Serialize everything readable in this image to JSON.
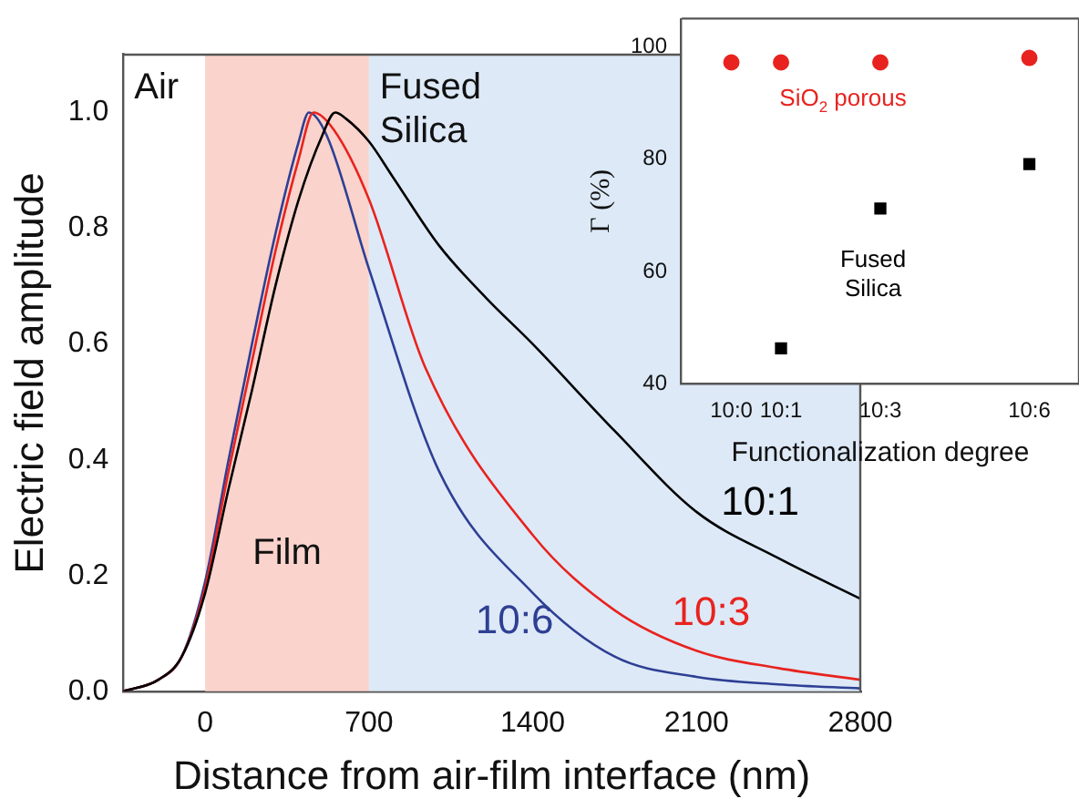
{
  "chart_data": [
    {
      "type": "line",
      "xlabel": "Distance from air-film interface (nm)",
      "ylabel": "Electric field amplitude",
      "xlim": [
        -350,
        2800
      ],
      "xticks": [
        0,
        700,
        1400,
        2100,
        2800
      ],
      "ylim": [
        0,
        1.1
      ],
      "yticks": [
        {
          "value": 0,
          "label": "0.0"
        },
        {
          "value": 0.2,
          "label": "0.2"
        },
        {
          "value": 0.4,
          "label": "0.4"
        },
        {
          "value": 0.6,
          "label": "0.6"
        },
        {
          "value": 0.8,
          "label": "0.8"
        },
        {
          "value": 1,
          "label": "1.0"
        }
      ],
      "grid": false,
      "legend": false,
      "marker": "none",
      "line_style": "solid",
      "annotations": [
        "Air"
      ],
      "bands": [
        {
          "axis": "x",
          "from": 0,
          "to": 700,
          "label": "Film",
          "color": "#f9d3cc"
        },
        {
          "axis": "x",
          "from": 700,
          "to": 2800,
          "label": "Fused Silica",
          "color": "#dde9f7"
        }
      ],
      "series": [
        {
          "name": "10:1",
          "color": "#000000",
          "x": [
            -350,
            -200,
            -100,
            0,
            100,
            200,
            300,
            400,
            500,
            556,
            600,
            700,
            800,
            1000,
            1200,
            1400,
            1750,
            2100,
            2450,
            2800
          ],
          "values": [
            0.0,
            0.02,
            0.06,
            0.17,
            0.35,
            0.52,
            0.7,
            0.85,
            0.96,
            1.0,
            0.99,
            0.95,
            0.89,
            0.77,
            0.68,
            0.6,
            0.45,
            0.31,
            0.23,
            0.16
          ]
        },
        {
          "name": "10:3",
          "color": "#e8231f",
          "x": [
            -350,
            -200,
            -100,
            0,
            100,
            200,
            300,
            400,
            463,
            550,
            700,
            940,
            1400,
            1750,
            2100,
            2450,
            2800
          ],
          "values": [
            0.0,
            0.02,
            0.06,
            0.18,
            0.38,
            0.57,
            0.76,
            0.92,
            1.0,
            0.97,
            0.85,
            0.56,
            0.27,
            0.14,
            0.07,
            0.04,
            0.02
          ]
        },
        {
          "name": "10:6",
          "color": "#2e3f94",
          "x": [
            -350,
            -200,
            -100,
            0,
            100,
            200,
            300,
            400,
            443,
            520,
            700,
            1000,
            1400,
            1750,
            2100,
            2450,
            2800
          ],
          "values": [
            0.0,
            0.02,
            0.06,
            0.19,
            0.4,
            0.6,
            0.79,
            0.95,
            1.0,
            0.96,
            0.73,
            0.38,
            0.17,
            0.06,
            0.025,
            0.012,
            0.005
          ]
        }
      ]
    },
    {
      "type": "scatter",
      "xlabel": "Functionalization degree",
      "ylabel": "Γ (%)",
      "categories": [
        "10:0",
        "10:1",
        null,
        "10:3",
        null,
        null,
        "10:6"
      ],
      "ylim": [
        40,
        105
      ],
      "yticks": [
        40,
        60,
        80,
        100
      ],
      "grid": false,
      "legend": false,
      "series": [
        {
          "name": "SiO$_{2}$ porous",
          "color": "#e8231f",
          "marker": "circle",
          "values": [
            97.2,
            97.2,
            null,
            97.2,
            null,
            null,
            98
          ]
        },
        {
          "name": "Fused Silica",
          "color": "#000000",
          "marker": "square",
          "values": [
            null,
            46.3,
            null,
            71.2,
            null,
            null,
            79.1
          ]
        }
      ]
    }
  ]
}
